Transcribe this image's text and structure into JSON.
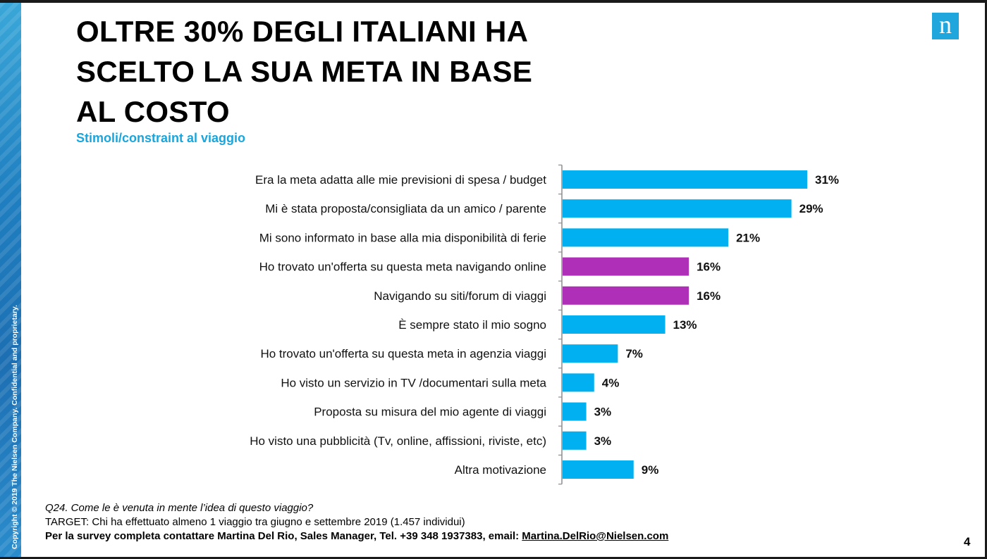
{
  "title": "OLTRE 30% DEGLI ITALIANI HA\nSCELTO  LA SUA META IN BASE\nAL COSTO",
  "subtitle": "Stimoli/constraint al viaggio",
  "logo_letter": "n",
  "copyright": "Copyright © 2019 The Nielsen Company. Confidential and proprietary.",
  "footer": {
    "question": "Q24. Come le è venuta in mente l’idea di questo viaggio?",
    "target": "TARGET: Chi ha effettuato almeno 1 viaggio tra giugno e settembre 2019 (1.457 individui)",
    "contact_prefix": "Per la survey completa contattare Martina Del Rio, Sales Manager, Tel. +39 348 1937383, email: ",
    "contact_email": "Martina.DelRio@Nielsen.com"
  },
  "page_number": "4",
  "colors": {
    "blue": "#00b0f0",
    "purple": "#b02fb8",
    "accent": "#1aa5dc"
  },
  "chart_data": {
    "type": "bar",
    "orientation": "horizontal",
    "title": "",
    "xlabel": "",
    "ylabel": "",
    "xlim": [
      0,
      31
    ],
    "grid": false,
    "categories": [
      "Era la meta adatta alle mie previsioni di spesa / budget",
      "Mi è stata proposta/consigliata da un amico / parente",
      "Mi sono informato in base alla mia disponibilità di ferie",
      "Ho trovato un'offerta su questa meta navigando online",
      "Navigando su siti/forum di viaggi",
      "È sempre stato il mio sogno",
      "Ho trovato un'offerta su questa meta in agenzia viaggi",
      "Ho visto un servizio in TV /documentari sulla meta",
      "Proposta su misura del mio agente di viaggi",
      "Ho visto una pubblicità (Tv, online, affissioni, riviste, etc)",
      "Altra motivazione"
    ],
    "values": [
      31,
      29,
      21,
      16,
      16,
      13,
      7,
      4,
      3,
      3,
      9
    ],
    "value_labels": [
      "31%",
      "29%",
      "21%",
      "16%",
      "16%",
      "13%",
      "7%",
      "4%",
      "3%",
      "3%",
      "9%"
    ],
    "bar_colors": [
      "#00b0f0",
      "#00b0f0",
      "#00b0f0",
      "#b02fb8",
      "#b02fb8",
      "#00b0f0",
      "#00b0f0",
      "#00b0f0",
      "#00b0f0",
      "#00b0f0",
      "#00b0f0"
    ]
  }
}
